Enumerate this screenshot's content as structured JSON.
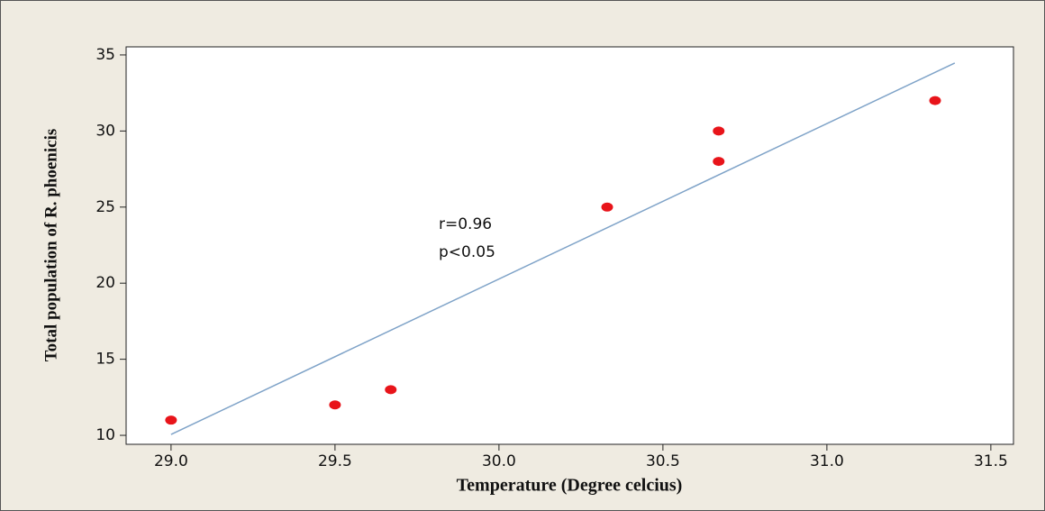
{
  "chart_data": {
    "type": "scatter",
    "x_label": "Temperature (Degree celcius)",
    "y_label": "Total population of R. phoenicis",
    "annotations": [
      "r=0.96",
      "p<0.05"
    ],
    "xlim": [
      28.863,
      31.569
    ],
    "ylim": [
      9.41,
      35.53
    ],
    "xticks": [
      {
        "value": 29,
        "label": "29.0"
      },
      29.5,
      {
        "value": 30,
        "label": "30.0"
      },
      30.5,
      {
        "value": 31,
        "label": "31.0"
      },
      31.5
    ],
    "yticks": [
      10,
      15,
      20,
      25,
      30,
      35
    ],
    "series": [
      {
        "type": "scatter",
        "color": "#e8141a",
        "x": [
          29.0,
          29.5,
          29.67,
          30.33,
          30.67,
          30.67,
          31.33
        ],
        "values": [
          11,
          12,
          13,
          25,
          28,
          30,
          32
        ]
      },
      {
        "type": "line",
        "color": "#7fa3c8",
        "x": [
          29.0,
          31.39
        ],
        "values": [
          10.06,
          34.47
        ]
      }
    ]
  }
}
